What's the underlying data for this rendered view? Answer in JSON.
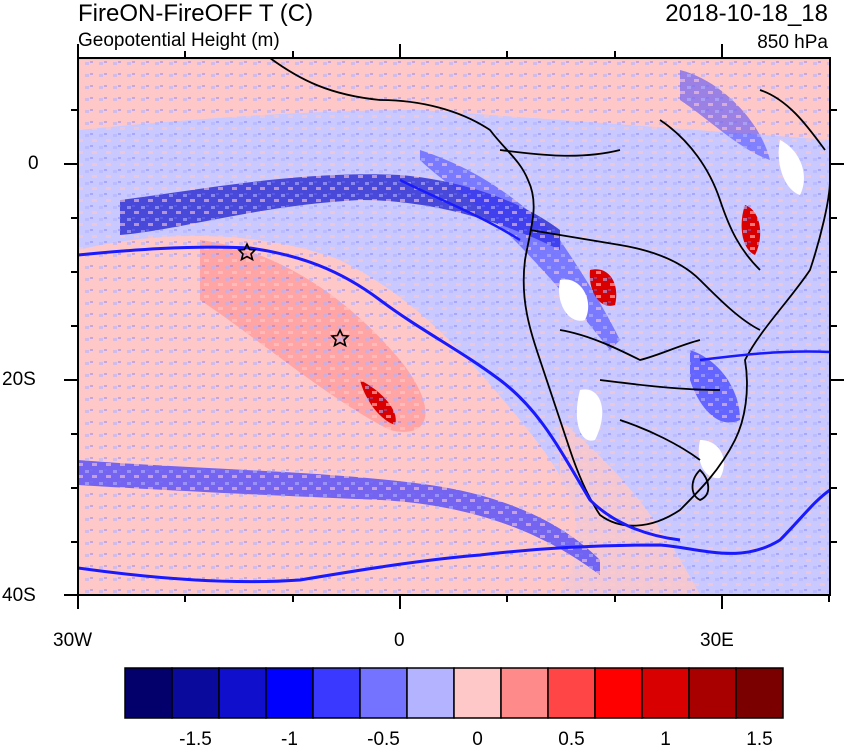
{
  "header": {
    "title_left": "FireON-FireOFF T (C)",
    "subtitle_left": "Geopotential Height (m)",
    "title_right": "2018-10-18_18",
    "subtitle_right": "850 hPa"
  },
  "map": {
    "lat_labels": [
      "0",
      "20S",
      "40S"
    ],
    "lon_labels": [
      "30W",
      "0",
      "30E"
    ],
    "region": "Southern Africa and South Atlantic",
    "markers": [
      "star-icon",
      "star-icon"
    ],
    "overlay_colors": {
      "contour": "#1a1aff",
      "coastline": "#000000",
      "wind_barbs": "#000000"
    }
  },
  "colorbar": {
    "colors": [
      "#03006b",
      "#0a0a9c",
      "#0f0fcc",
      "#0000ff",
      "#3939ff",
      "#7373ff",
      "#b3b3ff",
      "#ffc8c8",
      "#ff8a8a",
      "#ff4545",
      "#ff0000",
      "#d80000",
      "#a80000",
      "#7a0000"
    ],
    "labels": [
      "-1.5",
      "-1",
      "-0.5",
      "0",
      "0.5",
      "1",
      "1.5"
    ]
  }
}
